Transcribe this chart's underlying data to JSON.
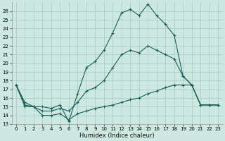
{
  "xlabel": "Humidex (Indice chaleur)",
  "bg_color": "#cce8e0",
  "grid_color": "#aad0c8",
  "line_color": "#1a5f5a",
  "xlim": [
    -0.5,
    23.5
  ],
  "ylim": [
    13,
    27
  ],
  "xticks": [
    0,
    1,
    2,
    3,
    4,
    5,
    6,
    7,
    8,
    9,
    10,
    11,
    12,
    13,
    14,
    15,
    16,
    17,
    18,
    19,
    20,
    21,
    22,
    23
  ],
  "yticks": [
    13,
    14,
    15,
    16,
    17,
    18,
    19,
    20,
    21,
    22,
    23,
    24,
    25,
    26
  ],
  "series": {
    "upper": [
      [
        0,
        17.5
      ],
      [
        1,
        15.5
      ],
      [
        2,
        15.0
      ],
      [
        3,
        15.0
      ],
      [
        4,
        14.8
      ],
      [
        5,
        15.2
      ],
      [
        6,
        13.3
      ],
      [
        7,
        16.5
      ],
      [
        8,
        19.5
      ],
      [
        9,
        20.2
      ],
      [
        10,
        21.5
      ],
      [
        11,
        23.5
      ],
      [
        12,
        25.8
      ],
      [
        13,
        26.2
      ],
      [
        14,
        25.5
      ],
      [
        15,
        26.8
      ],
      [
        16,
        25.5
      ],
      [
        17,
        24.5
      ],
      [
        18,
        23.2
      ],
      [
        19,
        18.5
      ],
      [
        20,
        17.5
      ],
      [
        21,
        15.2
      ],
      [
        22,
        15.2
      ],
      [
        23,
        15.2
      ]
    ],
    "middle": [
      [
        0,
        17.5
      ],
      [
        1,
        15.2
      ],
      [
        2,
        15.0
      ],
      [
        3,
        14.5
      ],
      [
        4,
        14.5
      ],
      [
        5,
        14.8
      ],
      [
        6,
        14.5
      ],
      [
        7,
        15.5
      ],
      [
        8,
        16.8
      ],
      [
        9,
        17.2
      ],
      [
        10,
        18.0
      ],
      [
        11,
        19.5
      ],
      [
        12,
        21.0
      ],
      [
        13,
        21.5
      ],
      [
        14,
        21.2
      ],
      [
        15,
        22.0
      ],
      [
        16,
        21.5
      ],
      [
        17,
        21.0
      ],
      [
        18,
        20.5
      ],
      [
        19,
        18.5
      ],
      [
        20,
        17.5
      ],
      [
        21,
        15.2
      ],
      [
        22,
        15.2
      ],
      [
        23,
        15.2
      ]
    ],
    "lower": [
      [
        0,
        17.5
      ],
      [
        1,
        15.0
      ],
      [
        2,
        15.0
      ],
      [
        3,
        14.0
      ],
      [
        4,
        14.0
      ],
      [
        5,
        14.2
      ],
      [
        6,
        13.5
      ],
      [
        7,
        14.2
      ],
      [
        8,
        14.5
      ],
      [
        9,
        14.8
      ],
      [
        10,
        15.0
      ],
      [
        11,
        15.2
      ],
      [
        12,
        15.5
      ],
      [
        13,
        15.8
      ],
      [
        14,
        16.0
      ],
      [
        15,
        16.5
      ],
      [
        16,
        16.8
      ],
      [
        17,
        17.2
      ],
      [
        18,
        17.5
      ],
      [
        19,
        17.5
      ],
      [
        20,
        17.5
      ],
      [
        21,
        15.2
      ],
      [
        22,
        15.2
      ],
      [
        23,
        15.2
      ]
    ]
  }
}
